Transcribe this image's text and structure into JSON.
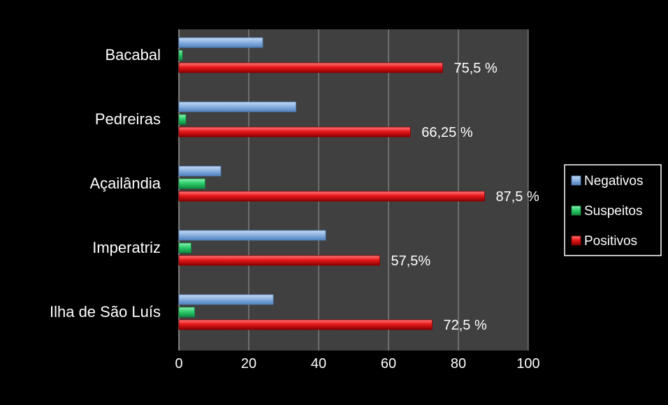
{
  "chart_data": {
    "type": "bar",
    "orientation": "horizontal",
    "categories": [
      "Bacabal",
      "Pedreiras",
      "Açailândia",
      "Imperatriz",
      "Ilha de São Luís"
    ],
    "series": [
      {
        "name": "Negativos",
        "color": "#8db3e2",
        "values": [
          24,
          33.5,
          12,
          42,
          27
        ]
      },
      {
        "name": "Suspeitos",
        "color": "#2fcf6e",
        "values": [
          1,
          2,
          7.5,
          3.5,
          4.5
        ]
      },
      {
        "name": "Positivos",
        "color": "#e8191b",
        "values": [
          75.5,
          66.25,
          87.5,
          57.5,
          72.5
        ]
      }
    ],
    "data_labels": [
      "75,5 %",
      "66,25 %",
      "87,5 %",
      "57,5%",
      "72,5 %"
    ],
    "x_ticks": [
      "0",
      "20",
      "40",
      "60",
      "80",
      "100"
    ],
    "xlim": [
      0,
      100
    ],
    "grid": true,
    "legend_position": "right",
    "plot_background": "#404040",
    "page_background": "#000000"
  }
}
